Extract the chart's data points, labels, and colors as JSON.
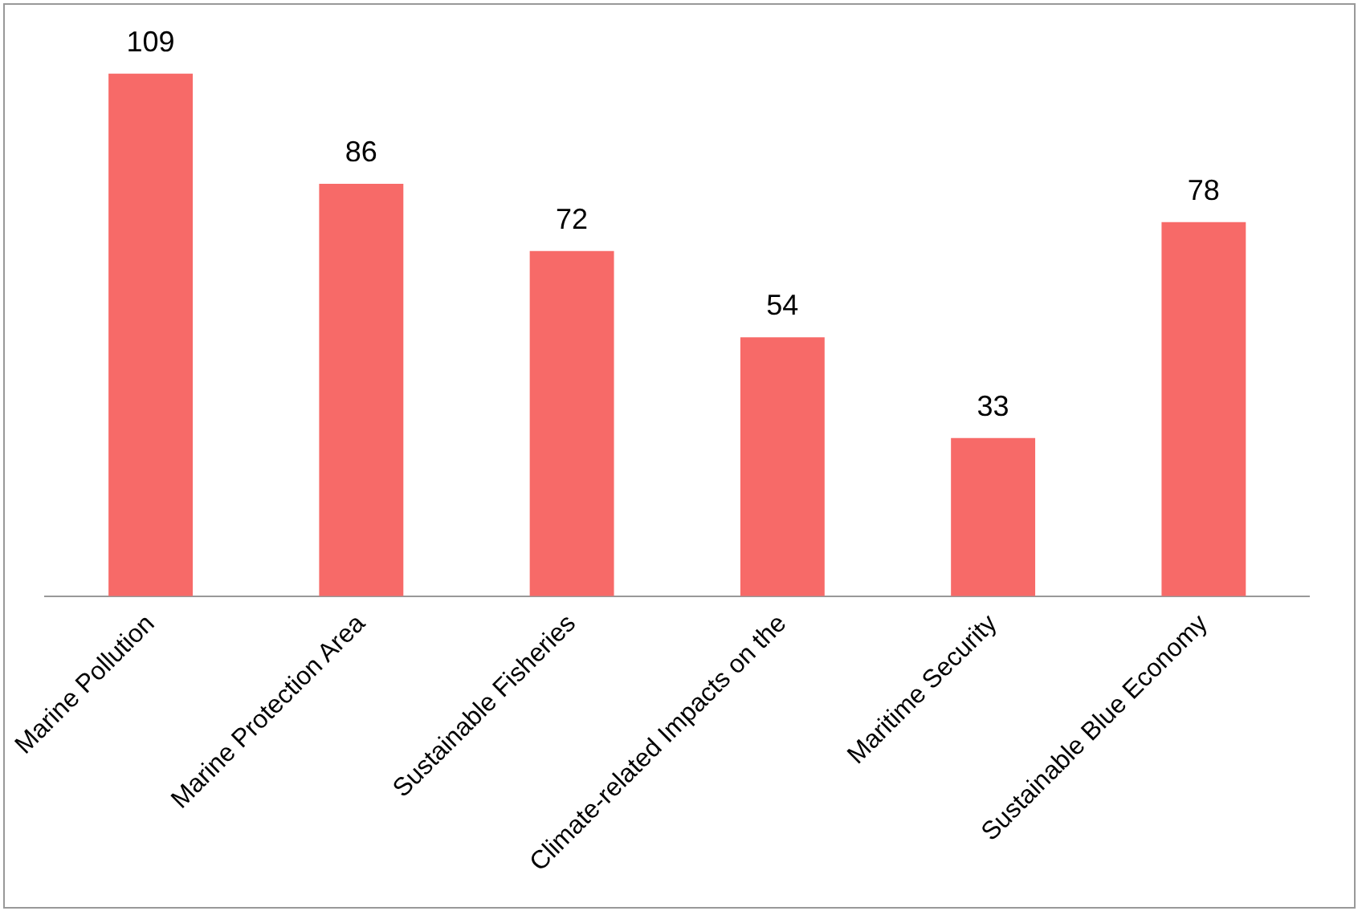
{
  "chart_data": {
    "type": "bar",
    "categories": [
      "Marine Pollution",
      "Marine Protection Area",
      "Sustainable Fisheries",
      "Climate-related Impacts on the",
      "Maritime Security",
      "Sustainable Blue Economy"
    ],
    "values": [
      109,
      86,
      72,
      54,
      33,
      78
    ],
    "color": "#f76a68",
    "data_labels": true,
    "grid": false,
    "legend": false,
    "tick_labels": "x"
  }
}
